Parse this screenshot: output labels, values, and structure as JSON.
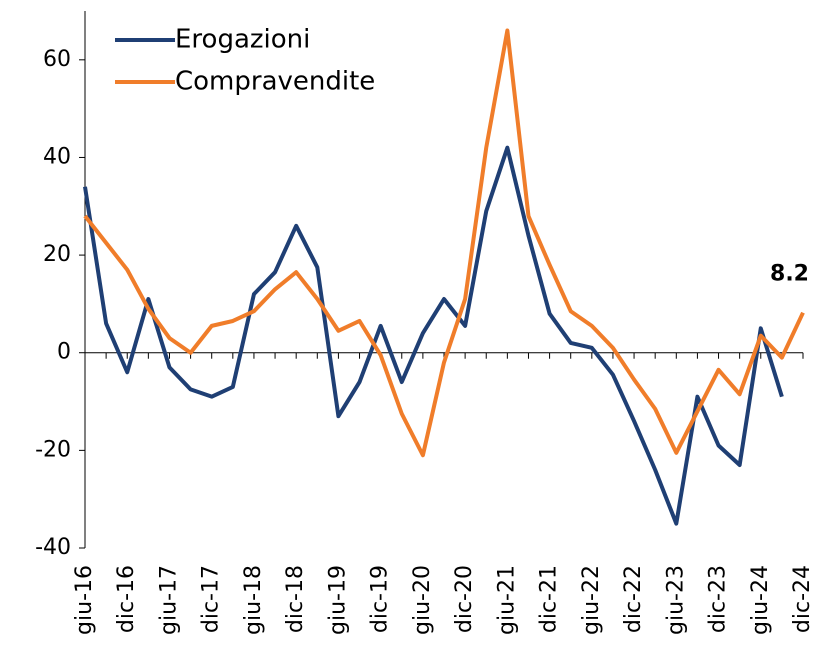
{
  "chart_data": {
    "type": "line",
    "categories": [
      "giu-16",
      null,
      "dic-16",
      null,
      "giu-17",
      null,
      "dic-17",
      null,
      "giu-18",
      null,
      "dic-18",
      null,
      "giu-19",
      null,
      "dic-19",
      null,
      "giu-20",
      null,
      "dic-20",
      null,
      "giu-21",
      null,
      "dic-21",
      null,
      "giu-22",
      null,
      "dic-22",
      null,
      "giu-23",
      null,
      "dic-23",
      null,
      "giu-24",
      null,
      "dic-24"
    ],
    "series": [
      {
        "name": "Erogazioni",
        "color": "#1f3f74",
        "values": [
          34,
          6,
          -4,
          11,
          -3,
          -7.5,
          -9,
          -7,
          12,
          16.5,
          26,
          17.5,
          -13,
          -6,
          5.5,
          -6,
          4,
          11,
          5.5,
          29,
          42,
          24,
          8,
          2,
          1,
          -4.5,
          -14,
          -24,
          -35,
          -9,
          -19,
          -23,
          5,
          -9,
          null
        ]
      },
      {
        "name": "Compravendite",
        "color": "#f07d2a",
        "values": [
          28,
          22.5,
          17,
          9,
          3,
          0,
          5.5,
          6.5,
          8.5,
          13,
          16.5,
          11,
          4.5,
          6.5,
          -0.5,
          -12.5,
          -21,
          -2,
          11,
          42,
          66,
          28,
          18,
          8.5,
          5.5,
          1,
          -5.5,
          -11.5,
          -20.5,
          -12,
          -3.5,
          -8.5,
          3.5,
          -1,
          8.2
        ]
      }
    ],
    "ylim": [
      -40,
      70
    ],
    "yticks": [
      -40,
      -20,
      0,
      20,
      40,
      60
    ],
    "legend": "top-left"
  }
}
